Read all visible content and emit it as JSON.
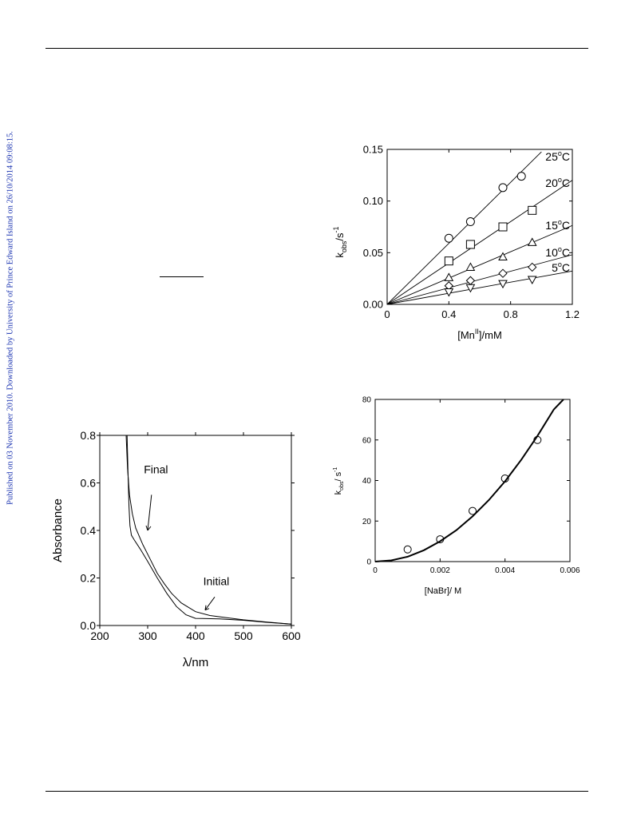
{
  "side_note": "Published on 03 November 2010. Downloaded by University of Prince Edward Island on 26/10/2014 09:08:15.",
  "chart_data": [
    {
      "type": "scatter",
      "ylabel_main": "k",
      "ylabel_sub": "obs",
      "ylabel_unit": "/s",
      "ylabel_exp": "-1",
      "xlabel_pre": "[Mn",
      "xlabel_sup": "II",
      "xlabel_post": "]/mM",
      "xlim": [
        0,
        1.2
      ],
      "ylim": [
        0,
        0.15
      ],
      "xticks": [
        "0",
        "0.4",
        "0.8",
        "1.2"
      ],
      "yticks": [
        "0.00",
        "0.05",
        "0.10",
        "0.15"
      ],
      "series": [
        {
          "name": "25",
          "marker": "circle",
          "x": [
            0.4,
            0.54,
            0.75,
            0.87
          ],
          "y": [
            0.064,
            0.08,
            0.113,
            0.124
          ],
          "fit_end": 1.0
        },
        {
          "name": "20",
          "marker": "square",
          "x": [
            0.4,
            0.54,
            0.75,
            0.94
          ],
          "y": [
            0.042,
            0.058,
            0.075,
            0.091
          ],
          "fit_end": 1.2
        },
        {
          "name": "15",
          "marker": "triangle",
          "x": [
            0.4,
            0.54,
            0.75,
            0.94
          ],
          "y": [
            0.026,
            0.036,
            0.046,
            0.06
          ],
          "fit_end": 1.2
        },
        {
          "name": "10",
          "marker": "diamond",
          "x": [
            0.4,
            0.54,
            0.75,
            0.94
          ],
          "y": [
            0.018,
            0.023,
            0.03,
            0.036
          ],
          "fit_end": 1.2
        },
        {
          "name": "5",
          "marker": "tri-down",
          "x": [
            0.4,
            0.54,
            0.75,
            0.94
          ],
          "y": [
            0.012,
            0.016,
            0.02,
            0.024
          ],
          "fit_end": 1.2
        }
      ],
      "temp_unit": "C",
      "temp_sup": "o"
    },
    {
      "type": "line",
      "ylabel": "Absorbance",
      "xlabel": "λ/nm",
      "xlim": [
        200,
        600
      ],
      "ylim": [
        0,
        0.8
      ],
      "xticks": [
        "200",
        "300",
        "400",
        "500",
        "600"
      ],
      "yticks": [
        "0.0",
        "0.2",
        "0.4",
        "0.6",
        "0.8"
      ],
      "series": [
        {
          "name": "Initial",
          "x": [
            255,
            258,
            262,
            268,
            275,
            290,
            305,
            320,
            335,
            350,
            370,
            400,
            430,
            460,
            500,
            550,
            600
          ],
          "y": [
            0.8,
            0.66,
            0.55,
            0.47,
            0.41,
            0.34,
            0.28,
            0.22,
            0.175,
            0.135,
            0.095,
            0.058,
            0.042,
            0.034,
            0.024,
            0.014,
            0.006
          ]
        },
        {
          "name": "Final",
          "x": [
            257,
            259,
            261,
            263,
            266,
            272,
            285,
            300,
            320,
            340,
            360,
            380,
            400,
            450,
            500,
            550,
            600
          ],
          "y": [
            0.8,
            0.64,
            0.5,
            0.42,
            0.38,
            0.36,
            0.32,
            0.27,
            0.2,
            0.135,
            0.08,
            0.045,
            0.03,
            0.028,
            0.022,
            0.013,
            0.006
          ]
        }
      ]
    },
    {
      "type": "scatter",
      "ylabel_main": "k",
      "ylabel_sub": "obs",
      "ylabel_unit": "/ s",
      "ylabel_exp": "-1",
      "xlabel": "[NaBr]/ M",
      "xlim": [
        0,
        0.006
      ],
      "ylim": [
        0,
        80
      ],
      "xticks": [
        "0",
        "0.002",
        "0.004",
        "0.006"
      ],
      "yticks": [
        "0",
        "20",
        "40",
        "60",
        "80"
      ],
      "points": {
        "x": [
          0.001,
          0.002,
          0.003,
          0.004,
          0.005
        ],
        "y": [
          6,
          11,
          25,
          41,
          60
        ]
      },
      "fit": {
        "x": [
          0,
          0.0005,
          0.001,
          0.0015,
          0.002,
          0.0025,
          0.003,
          0.0035,
          0.004,
          0.0045,
          0.005,
          0.0055,
          0.0058
        ],
        "y": [
          0,
          0.6,
          2.4,
          5.6,
          10,
          15.5,
          22.3,
          30.3,
          39.6,
          50.2,
          62,
          75,
          80
        ]
      }
    }
  ]
}
